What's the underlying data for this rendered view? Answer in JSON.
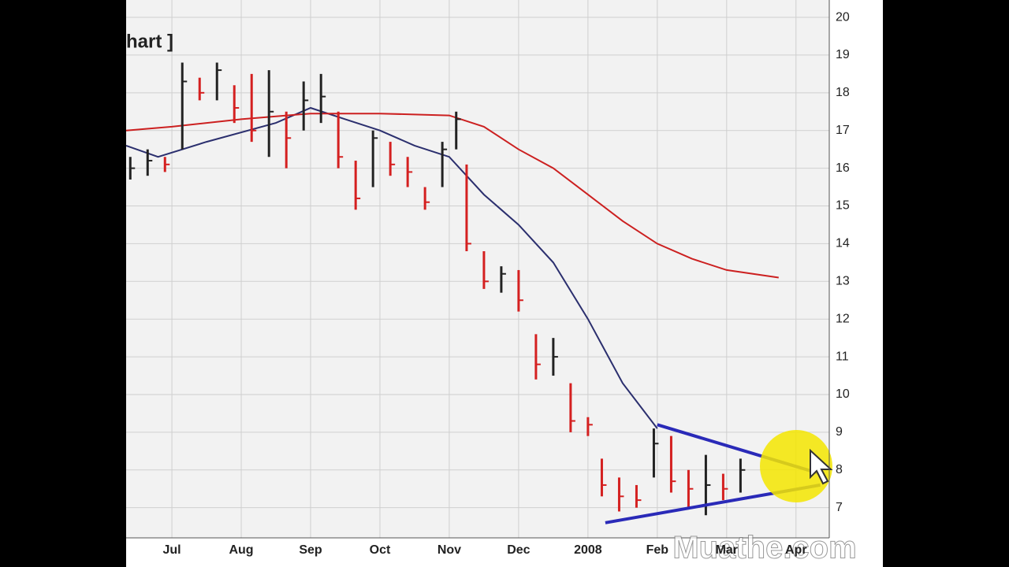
{
  "chart_data": {
    "type": "ohlc",
    "title": "hart ]",
    "watermark": "Muathe.com",
    "up_color": "#222222",
    "down_color": "#d42020",
    "x": [
      6.4,
      6.65,
      6.9,
      7.15,
      7.4,
      7.65,
      7.9,
      8.15,
      8.4,
      8.65,
      8.9,
      9.15,
      9.4,
      9.65,
      9.9,
      10.15,
      10.4,
      10.65,
      10.9,
      11.1,
      11.25,
      11.5,
      11.75,
      12.0,
      12.25,
      12.5,
      12.75,
      13.0,
      13.2,
      13.45,
      13.7,
      13.95,
      14.2,
      14.45,
      14.7,
      14.95,
      15.2
    ],
    "high": [
      16.3,
      16.5,
      16.3,
      18.8,
      18.4,
      18.8,
      18.2,
      18.5,
      18.6,
      17.5,
      18.3,
      18.5,
      17.5,
      16.2,
      17.0,
      16.7,
      16.3,
      15.5,
      16.7,
      17.5,
      16.1,
      13.8,
      13.4,
      13.3,
      11.6,
      11.5,
      10.3,
      9.4,
      8.3,
      7.8,
      7.6,
      9.1,
      8.9,
      8.0,
      8.4,
      7.9,
      8.3
    ],
    "low": [
      15.7,
      15.8,
      15.9,
      16.5,
      17.8,
      17.8,
      17.2,
      16.7,
      16.3,
      16.0,
      17.0,
      17.2,
      16.0,
      14.9,
      15.5,
      15.8,
      15.5,
      14.9,
      15.5,
      16.5,
      13.8,
      12.8,
      12.7,
      12.2,
      10.4,
      10.5,
      9.0,
      8.9,
      7.3,
      6.9,
      7.0,
      7.8,
      7.4,
      7.0,
      6.8,
      7.2,
      7.4
    ],
    "close": [
      16.0,
      16.2,
      16.1,
      18.3,
      18.0,
      18.6,
      17.6,
      17.0,
      17.5,
      16.8,
      17.8,
      17.9,
      16.3,
      15.2,
      16.8,
      16.1,
      15.9,
      15.1,
      16.5,
      17.3,
      14.0,
      13.0,
      13.2,
      12.5,
      10.8,
      11.0,
      9.3,
      9.2,
      7.6,
      7.3,
      7.2,
      8.7,
      7.7,
      7.5,
      7.6,
      7.5,
      8.0
    ],
    "moving_averages": [
      {
        "color": "#2b2f6e",
        "x": [
          6.34,
          6.8,
          7.5,
          8.5,
          9.0,
          9.5,
          10.0,
          10.5,
          11.0,
          11.5,
          12.0,
          12.5,
          13.0,
          13.5,
          14.0
        ],
        "values": [
          16.6,
          16.3,
          16.7,
          17.2,
          17.6,
          17.3,
          17.0,
          16.6,
          16.3,
          15.3,
          14.5,
          13.5,
          12.0,
          10.3,
          9.1
        ]
      },
      {
        "color": "#cc2020",
        "x": [
          6.34,
          7.0,
          8.0,
          9.0,
          10.0,
          11.0,
          11.5,
          12.0,
          12.5,
          13.0,
          13.5,
          14.0,
          14.5,
          15.0,
          15.75
        ],
        "values": [
          17.0,
          17.1,
          17.3,
          17.45,
          17.45,
          17.4,
          17.1,
          16.5,
          16.0,
          15.3,
          14.6,
          14.0,
          13.6,
          13.3,
          13.1
        ]
      }
    ],
    "trendlines": [
      {
        "color": "#2a2ab8",
        "x": [
          14.0,
          16.35
        ],
        "values": [
          9.2,
          7.9
        ]
      },
      {
        "color": "#2a2ab8",
        "x": [
          13.25,
          16.35
        ],
        "values": [
          6.6,
          7.6
        ]
      }
    ],
    "xlim": [
      6.34,
      16.48
    ],
    "ylim": [
      6.2,
      20.46
    ],
    "xticks": [
      {
        "value": 7,
        "label": "Jul"
      },
      {
        "value": 8,
        "label": "Aug"
      },
      {
        "value": 9,
        "label": "Sep"
      },
      {
        "value": 10,
        "label": "Oct"
      },
      {
        "value": 11,
        "label": "Nov"
      },
      {
        "value": 12,
        "label": "Dec"
      },
      {
        "value": 13,
        "label": "2008"
      },
      {
        "value": 14,
        "label": "Feb"
      },
      {
        "value": 15,
        "label": "Mar"
      },
      {
        "value": 16,
        "label": "Apr"
      }
    ],
    "yticks": [
      7,
      8,
      9,
      10,
      11,
      12,
      13,
      14,
      15,
      16,
      17,
      18,
      19,
      20
    ],
    "grid": true
  }
}
